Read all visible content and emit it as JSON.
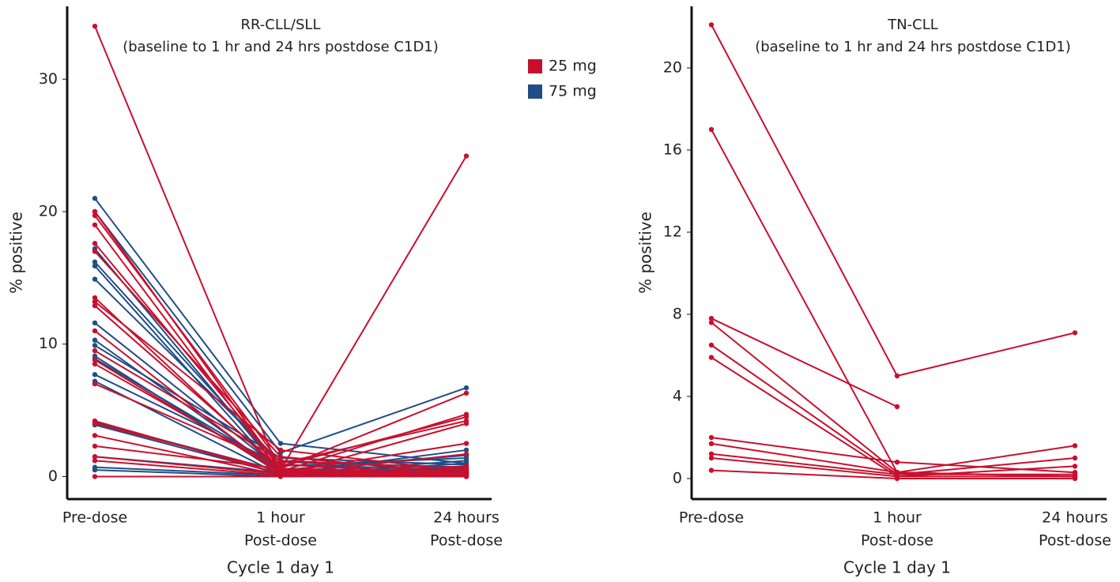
{
  "chart_data": [
    {
      "type": "line",
      "title": [
        "RR-CLL/SLL",
        "(baseline to 1 hr and 24 hrs postdose C1D1)"
      ],
      "x_label": "Cycle 1 day 1",
      "y_label": "% positive",
      "categories": [
        [
          "Pre-dose"
        ],
        [
          "1 hour",
          "Post-dose"
        ],
        [
          "24 hours",
          "Post-dose"
        ]
      ],
      "ylim": [
        -1.7,
        35.5
      ],
      "yticks": [
        0,
        10,
        20,
        30
      ],
      "legend": true,
      "series": [
        {
          "name": "25 mg",
          "color": "#c8102e",
          "lines": [
            [
              34,
              0.2,
              0.3
            ],
            [
              20,
              0.5,
              0.1
            ],
            [
              19.7,
              1.0,
              4.2
            ],
            [
              19,
              0.3,
              0
            ],
            [
              17.6,
              0.8,
              4.5
            ],
            [
              17,
              1.5,
              0.2
            ],
            [
              13.5,
              0.4,
              4.7
            ],
            [
              13.2,
              2.0,
              0.4
            ],
            [
              12.9,
              0.6,
              6.3
            ],
            [
              11,
              0.1,
              4.0
            ],
            [
              9.5,
              1.2,
              0.6
            ],
            [
              8.8,
              0.3,
              2.5
            ],
            [
              8.5,
              0.5,
              24.2
            ],
            [
              7,
              0.9,
              0.2
            ],
            [
              4.2,
              0.2,
              1.7
            ],
            [
              4,
              0.4,
              0.1
            ],
            [
              3.1,
              0.1,
              0.8
            ],
            [
              2.3,
              0.6,
              0.3
            ],
            [
              1.5,
              0.2,
              0
            ],
            [
              1.2,
              0.1,
              0.5
            ],
            [
              0,
              0,
              0
            ]
          ]
        },
        {
          "name": "75 mg",
          "color": "#1f4e86",
          "lines": [
            [
              21,
              2.5,
              1.0
            ],
            [
              20,
              1.8,
              6.7
            ],
            [
              17.2,
              0.4,
              0.2
            ],
            [
              16.2,
              0.8,
              1.4
            ],
            [
              15.9,
              0.2,
              2.0
            ],
            [
              14.9,
              1.1,
              0.7
            ],
            [
              11.6,
              0.5,
              1.6
            ],
            [
              10.3,
              0.3,
              0.4
            ],
            [
              9.9,
              1.4,
              0.9
            ],
            [
              9.1,
              0.2,
              1.2
            ],
            [
              8.9,
              0.6,
              0.3
            ],
            [
              7.7,
              0.9,
              0.5
            ],
            [
              7.2,
              0.1,
              1.0
            ],
            [
              4.1,
              0.4,
              0.2
            ],
            [
              3.9,
              0.2,
              0.6
            ],
            [
              1.5,
              0.3,
              0.1
            ],
            [
              0.7,
              0.1,
              0.3
            ],
            [
              0.5,
              0,
              0.2
            ]
          ]
        }
      ]
    },
    {
      "type": "line",
      "title": [
        "TN-CLL",
        "(baseline to 1 hr and 24 hrs postdose C1D1)"
      ],
      "x_label": "Cycle 1 day 1",
      "y_label": "% positive",
      "categories": [
        [
          "Pre-dose"
        ],
        [
          "1 hour",
          "Post-dose"
        ],
        [
          "24 hours",
          "Post-dose"
        ]
      ],
      "ylim": [
        -1.0,
        23
      ],
      "yticks": [
        0,
        4,
        8,
        12,
        16,
        20
      ],
      "legend": false,
      "series": [
        {
          "color": "#c8102e",
          "lines": [
            [
              22.1,
              5.0,
              7.1
            ],
            [
              17.0,
              0.3,
              0.1
            ],
            [
              7.8,
              3.5,
              null
            ],
            [
              7.6,
              0.3,
              1.6
            ],
            [
              6.5,
              0.2,
              1.0
            ],
            [
              5.9,
              0.1,
              0.6
            ],
            [
              2.0,
              0.8,
              0.3
            ],
            [
              1.7,
              0.3,
              0.1
            ],
            [
              1.2,
              0.2,
              0.2
            ],
            [
              1.0,
              0.1,
              0.1
            ],
            [
              0.4,
              0,
              0
            ]
          ]
        }
      ]
    }
  ]
}
